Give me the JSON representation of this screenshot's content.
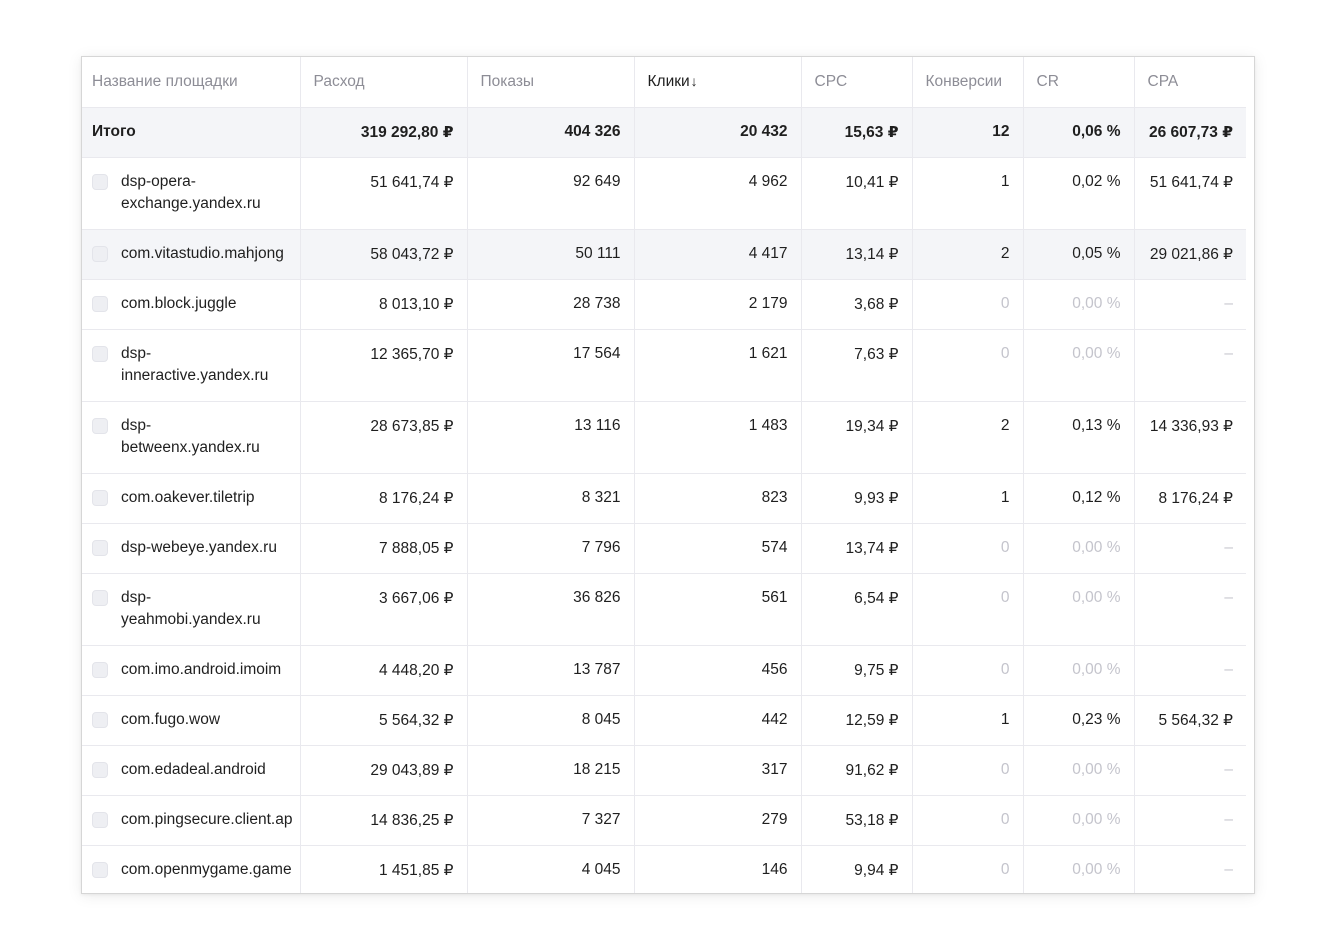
{
  "table": {
    "headers": [
      "Название площадки",
      "Расход",
      "Показы",
      "Клики",
      "CPC",
      "Конверсии",
      "CR",
      "CPA"
    ],
    "sort_arrow": "↓",
    "total": {
      "name": "Итого",
      "spend": "319 292,80 ₽",
      "impressions": "404 326",
      "clicks": "20 432",
      "cpc": "15,63 ₽",
      "conversions": "12",
      "cr": "0,06 %",
      "cpa": "26 607,73 ₽"
    },
    "rows": [
      {
        "name": "dsp-opera-exchange.yandex.ru",
        "spend": "51 641,74 ₽",
        "impressions": "92 649",
        "clicks": "4 962",
        "cpc": "10,41 ₽",
        "conversions": "1",
        "cr": "0,02 %",
        "cpa": "51 641,74 ₽"
      },
      {
        "name": "com.vitastudio.mahjong",
        "spend": "58 043,72 ₽",
        "impressions": "50 111",
        "clicks": "4 417",
        "cpc": "13,14 ₽",
        "conversions": "2",
        "cr": "0,05 %",
        "cpa": "29 021,86 ₽"
      },
      {
        "name": "com.block.juggle",
        "spend": "8 013,10 ₽",
        "impressions": "28 738",
        "clicks": "2 179",
        "cpc": "3,68 ₽",
        "conversions": "0",
        "cr": "0,00 %",
        "cpa": "–"
      },
      {
        "name": "dsp-inneractive.yandex.ru",
        "spend": "12 365,70 ₽",
        "impressions": "17 564",
        "clicks": "1 621",
        "cpc": "7,63 ₽",
        "conversions": "0",
        "cr": "0,00 %",
        "cpa": "–"
      },
      {
        "name": "dsp-betweenx.yandex.ru",
        "spend": "28 673,85 ₽",
        "impressions": "13 116",
        "clicks": "1 483",
        "cpc": "19,34 ₽",
        "conversions": "2",
        "cr": "0,13 %",
        "cpa": "14 336,93 ₽"
      },
      {
        "name": "com.oakever.tiletrip",
        "spend": "8 176,24 ₽",
        "impressions": "8 321",
        "clicks": "823",
        "cpc": "9,93 ₽",
        "conversions": "1",
        "cr": "0,12 %",
        "cpa": "8 176,24 ₽"
      },
      {
        "name": "dsp-webeye.yandex.ru",
        "spend": "7 888,05 ₽",
        "impressions": "7 796",
        "clicks": "574",
        "cpc": "13,74 ₽",
        "conversions": "0",
        "cr": "0,00 %",
        "cpa": "–"
      },
      {
        "name": "dsp-yeahmobi.yandex.ru",
        "spend": "3 667,06 ₽",
        "impressions": "36 826",
        "clicks": "561",
        "cpc": "6,54 ₽",
        "conversions": "0",
        "cr": "0,00 %",
        "cpa": "–"
      },
      {
        "name": "com.imo.android.imoim",
        "spend": "4 448,20 ₽",
        "impressions": "13 787",
        "clicks": "456",
        "cpc": "9,75 ₽",
        "conversions": "0",
        "cr": "0,00 %",
        "cpa": "–"
      },
      {
        "name": "com.fugo.wow",
        "spend": "5 564,32 ₽",
        "impressions": "8 045",
        "clicks": "442",
        "cpc": "12,59 ₽",
        "conversions": "1",
        "cr": "0,23 %",
        "cpa": "5 564,32 ₽"
      },
      {
        "name": "com.edadeal.android",
        "spend": "29 043,89 ₽",
        "impressions": "18 215",
        "clicks": "317",
        "cpc": "91,62 ₽",
        "conversions": "0",
        "cr": "0,00 %",
        "cpa": "–"
      },
      {
        "name": "com.pingsecure.client.ap",
        "spend": "14 836,25 ₽",
        "impressions": "7 327",
        "clicks": "279",
        "cpc": "53,18 ₽",
        "conversions": "0",
        "cr": "0,00 %",
        "cpa": "–"
      },
      {
        "name": "com.openmygame.game",
        "spend": "1 451,85 ₽",
        "impressions": "4 045",
        "clicks": "146",
        "cpc": "9,94 ₽",
        "conversions": "0",
        "cr": "0,00 %",
        "cpa": "–"
      }
    ]
  }
}
